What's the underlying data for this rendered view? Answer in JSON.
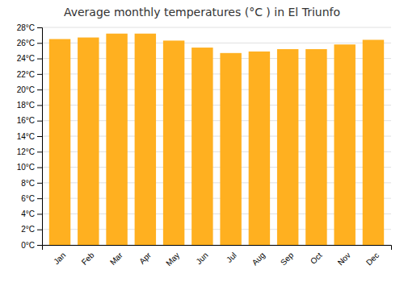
{
  "chart_data": {
    "type": "bar",
    "title": "Average monthly temperatures (°C ) in El Triunfo",
    "categories": [
      "Jan",
      "Feb",
      "Mar",
      "Apr",
      "May",
      "Jun",
      "Jul",
      "Aug",
      "Sep",
      "Oct",
      "Nov",
      "Dec"
    ],
    "values": [
      26.5,
      26.7,
      27.2,
      27.2,
      26.3,
      25.4,
      24.7,
      24.9,
      25.2,
      25.2,
      25.8,
      26.4
    ],
    "color": "#FFB020",
    "ylim": [
      0,
      28
    ],
    "yticks": [
      {
        "value": 0,
        "label": "0°C"
      },
      {
        "value": 2,
        "label": "2°C"
      },
      {
        "value": 4,
        "label": "4°C"
      },
      {
        "value": 6,
        "label": "6°C"
      },
      {
        "value": 8,
        "label": "8°C"
      },
      {
        "value": 10,
        "label": "10°C"
      },
      {
        "value": 12,
        "label": "12°C"
      },
      {
        "value": 14,
        "label": "14°C"
      },
      {
        "value": 16,
        "label": "16°C"
      },
      {
        "value": 18,
        "label": "18°C"
      },
      {
        "value": 20,
        "label": "20°C"
      },
      {
        "value": 22,
        "label": "22°C"
      },
      {
        "value": 24,
        "label": "24°C"
      },
      {
        "value": 26,
        "label": "26°C"
      },
      {
        "value": 28,
        "label": "28°C"
      }
    ],
    "grid": true
  }
}
